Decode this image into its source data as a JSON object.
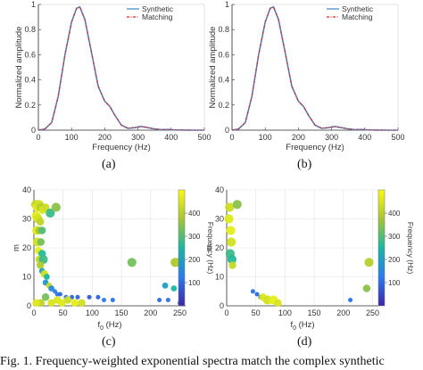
{
  "captions": {
    "a": "(a)",
    "b": "(b)",
    "c": "(c)",
    "d": "(d)"
  },
  "figure_caption": "Fig. 1.   Frequency-weighted exponential spectra match the complex synthetic",
  "chart_data": [
    {
      "type": "line",
      "xlabel": "Frequency (Hz)",
      "ylabel": "Normalized amplitude",
      "xlim": [
        0,
        500
      ],
      "ylim": [
        0,
        1
      ],
      "xticks": [
        0,
        100,
        200,
        300,
        400,
        500
      ],
      "yticks": [
        0,
        0.2,
        0.4,
        0.6,
        0.8,
        1
      ],
      "ytick_labels": [
        "0",
        "0.2",
        "0.4",
        "0.6",
        "0.8",
        "1"
      ],
      "grid": false,
      "legend": "top-right",
      "series": [
        {
          "name": "Synthetic",
          "color": "#4a90c9",
          "style": "solid",
          "x": [
            0,
            20,
            40,
            60,
            80,
            100,
            115,
            125,
            140,
            160,
            180,
            200,
            215,
            230,
            250,
            270,
            290,
            310,
            330,
            350,
            370,
            390,
            410,
            440,
            470,
            500
          ],
          "y": [
            0,
            0.01,
            0.06,
            0.27,
            0.6,
            0.86,
            0.97,
            0.98,
            0.88,
            0.62,
            0.35,
            0.23,
            0.19,
            0.12,
            0.04,
            0.015,
            0.02,
            0.03,
            0.02,
            0.01,
            0.004,
            0.006,
            0.002,
            0.001,
            0,
            0
          ]
        },
        {
          "name": "Matching",
          "color": "#d62728",
          "style": "dashdot",
          "x": [
            0,
            20,
            40,
            60,
            80,
            100,
            115,
            125,
            140,
            160,
            180,
            200,
            215,
            230,
            250,
            270,
            290,
            310,
            330,
            350,
            370,
            390,
            410,
            440,
            470,
            500
          ],
          "y": [
            0,
            0.01,
            0.06,
            0.27,
            0.6,
            0.86,
            0.97,
            0.98,
            0.88,
            0.62,
            0.35,
            0.23,
            0.19,
            0.12,
            0.04,
            0.015,
            0.02,
            0.03,
            0.02,
            0.01,
            0.004,
            0.006,
            0.002,
            0.001,
            0,
            0
          ]
        }
      ]
    },
    {
      "type": "line",
      "xlabel": "Frequency (Hz)",
      "ylabel": "Normalized amplitude",
      "xlim": [
        0,
        500
      ],
      "ylim": [
        0,
        1
      ],
      "xticks": [
        0,
        100,
        200,
        300,
        400,
        500
      ],
      "yticks": [
        0,
        0.2,
        0.4,
        0.6,
        0.8,
        1
      ],
      "ytick_labels": [
        "0",
        "0.2",
        "0.4",
        "0.6",
        "0.8",
        "1"
      ],
      "grid": false,
      "legend": "top-right",
      "series": [
        {
          "name": "Synthetic",
          "color": "#4a90c9",
          "style": "solid",
          "x": [
            0,
            20,
            40,
            60,
            80,
            100,
            115,
            125,
            140,
            160,
            180,
            200,
            215,
            230,
            250,
            270,
            290,
            310,
            330,
            350,
            370,
            390,
            410,
            440,
            470,
            500
          ],
          "y": [
            0,
            0.01,
            0.06,
            0.27,
            0.6,
            0.86,
            0.97,
            0.98,
            0.88,
            0.62,
            0.35,
            0.23,
            0.19,
            0.12,
            0.04,
            0.015,
            0.02,
            0.03,
            0.02,
            0.01,
            0.004,
            0.006,
            0.002,
            0.001,
            0,
            0
          ]
        },
        {
          "name": "Matching",
          "color": "#d62728",
          "style": "dashdot",
          "x": [
            0,
            20,
            40,
            60,
            80,
            100,
            115,
            125,
            140,
            160,
            180,
            200,
            215,
            230,
            250,
            270,
            290,
            310,
            330,
            350,
            370,
            390,
            410,
            440,
            470,
            500
          ],
          "y": [
            0,
            0.01,
            0.06,
            0.27,
            0.6,
            0.86,
            0.97,
            0.98,
            0.88,
            0.62,
            0.35,
            0.23,
            0.19,
            0.12,
            0.04,
            0.015,
            0.02,
            0.03,
            0.02,
            0.01,
            0.004,
            0.006,
            0.002,
            0.001,
            0,
            0
          ]
        }
      ]
    },
    {
      "type": "scatter",
      "xlabel": "f",
      "xlabel_sub": "0",
      "xlabel_unit": " (Hz)",
      "ylabel": "m",
      "xlim": [
        0,
        260
      ],
      "ylim": [
        0,
        40
      ],
      "xticks": [
        0,
        50,
        100,
        150,
        200,
        250
      ],
      "yticks": [
        0,
        10,
        20,
        30,
        40
      ],
      "grid": true,
      "colorbar": {
        "label": "Frequency (Hz)",
        "range": [
          0,
          500
        ],
        "ticks": [
          100,
          200,
          300,
          400
        ]
      },
      "points": [
        {
          "x": 3,
          "y": 35,
          "c": 420,
          "s": 6
        },
        {
          "x": 6,
          "y": 34,
          "c": 460,
          "s": 6
        },
        {
          "x": 9,
          "y": 35,
          "c": 440,
          "s": 6
        },
        {
          "x": 12,
          "y": 34,
          "c": 400,
          "s": 6
        },
        {
          "x": 15,
          "y": 33,
          "c": 450,
          "s": 5
        },
        {
          "x": 20,
          "y": 34,
          "c": 430,
          "s": 5
        },
        {
          "x": 28,
          "y": 32,
          "c": 280,
          "s": 6
        },
        {
          "x": 38,
          "y": 34,
          "c": 350,
          "s": 6
        },
        {
          "x": 4,
          "y": 31,
          "c": 470,
          "s": 6
        },
        {
          "x": 7,
          "y": 30,
          "c": 440,
          "s": 6
        },
        {
          "x": 11,
          "y": 29,
          "c": 410,
          "s": 5
        },
        {
          "x": 5,
          "y": 26,
          "c": 460,
          "s": 6
        },
        {
          "x": 9,
          "y": 26,
          "c": 380,
          "s": 5
        },
        {
          "x": 14,
          "y": 26,
          "c": 300,
          "s": 5
        },
        {
          "x": 6,
          "y": 22,
          "c": 440,
          "s": 6
        },
        {
          "x": 12,
          "y": 22,
          "c": 330,
          "s": 5
        },
        {
          "x": 8,
          "y": 19,
          "c": 470,
          "s": 5
        },
        {
          "x": 14,
          "y": 18,
          "c": 260,
          "s": 5
        },
        {
          "x": 9,
          "y": 16,
          "c": 420,
          "s": 5
        },
        {
          "x": 16,
          "y": 16,
          "c": 280,
          "s": 6
        },
        {
          "x": 11,
          "y": 14,
          "c": 390,
          "s": 5
        },
        {
          "x": 14,
          "y": 12,
          "c": 200,
          "s": 4
        },
        {
          "x": 18,
          "y": 11,
          "c": 440,
          "s": 5
        },
        {
          "x": 22,
          "y": 10,
          "c": 250,
          "s": 4
        },
        {
          "x": 20,
          "y": 8,
          "c": 180,
          "s": 4
        },
        {
          "x": 26,
          "y": 7,
          "c": 420,
          "s": 4
        },
        {
          "x": 30,
          "y": 6,
          "c": 160,
          "s": 4
        },
        {
          "x": 36,
          "y": 5,
          "c": 140,
          "s": 3
        },
        {
          "x": 40,
          "y": 4,
          "c": 120,
          "s": 3
        },
        {
          "x": 45,
          "y": 4,
          "c": 100,
          "s": 3
        },
        {
          "x": 55,
          "y": 3,
          "c": 110,
          "s": 3
        },
        {
          "x": 65,
          "y": 3,
          "c": 90,
          "s": 3
        },
        {
          "x": 75,
          "y": 3,
          "c": 90,
          "s": 3
        },
        {
          "x": 95,
          "y": 3,
          "c": 80,
          "s": 3
        },
        {
          "x": 110,
          "y": 3,
          "c": 90,
          "s": 3
        },
        {
          "x": 40,
          "y": 2,
          "c": 450,
          "s": 5
        },
        {
          "x": 48,
          "y": 1,
          "c": 460,
          "s": 5
        },
        {
          "x": 58,
          "y": 2,
          "c": 430,
          "s": 5
        },
        {
          "x": 70,
          "y": 1,
          "c": 470,
          "s": 5
        },
        {
          "x": 82,
          "y": 1,
          "c": 440,
          "s": 5
        },
        {
          "x": 30,
          "y": 1,
          "c": 450,
          "s": 5
        },
        {
          "x": 12,
          "y": 1,
          "c": 410,
          "s": 5
        },
        {
          "x": 4,
          "y": 1,
          "c": 460,
          "s": 5
        },
        {
          "x": 20,
          "y": 3,
          "c": 330,
          "s": 5
        },
        {
          "x": 120,
          "y": 2,
          "c": 120,
          "s": 3
        },
        {
          "x": 135,
          "y": 2,
          "c": 110,
          "s": 3
        },
        {
          "x": 168,
          "y": 15,
          "c": 330,
          "s": 6
        },
        {
          "x": 215,
          "y": 2,
          "c": 100,
          "s": 3
        },
        {
          "x": 225,
          "y": 7,
          "c": 200,
          "s": 4
        },
        {
          "x": 230,
          "y": 2,
          "c": 110,
          "s": 3
        },
        {
          "x": 242,
          "y": 15,
          "c": 380,
          "s": 6
        },
        {
          "x": 248,
          "y": 15,
          "c": 400,
          "s": 6
        },
        {
          "x": 240,
          "y": 6,
          "c": 250,
          "s": 4
        },
        {
          "x": 250,
          "y": 1,
          "c": 110,
          "s": 3
        }
      ]
    },
    {
      "type": "scatter",
      "xlabel": "f",
      "xlabel_sub": "0",
      "xlabel_unit": " (Hz)",
      "ylabel": "m",
      "xlim": [
        0,
        260
      ],
      "ylim": [
        0,
        40
      ],
      "xticks": [
        0,
        50,
        100,
        150,
        200,
        250
      ],
      "yticks": [
        0,
        10,
        20,
        30,
        40
      ],
      "grid": true,
      "colorbar": {
        "label": "Frequency (Hz)",
        "range": [
          0,
          500
        ],
        "ticks": [
          100,
          200,
          300,
          400
        ]
      },
      "points": [
        {
          "x": 5,
          "y": 34,
          "c": 430,
          "s": 6
        },
        {
          "x": 18,
          "y": 35,
          "c": 350,
          "s": 6
        },
        {
          "x": 4,
          "y": 30,
          "c": 460,
          "s": 6
        },
        {
          "x": 7,
          "y": 26,
          "c": 470,
          "s": 6
        },
        {
          "x": 8,
          "y": 22,
          "c": 440,
          "s": 6
        },
        {
          "x": 6,
          "y": 18,
          "c": 280,
          "s": 6
        },
        {
          "x": 9,
          "y": 16,
          "c": 260,
          "s": 6
        },
        {
          "x": 10,
          "y": 14,
          "c": 420,
          "s": 5
        },
        {
          "x": 45,
          "y": 5,
          "c": 110,
          "s": 3
        },
        {
          "x": 52,
          "y": 4,
          "c": 100,
          "s": 3
        },
        {
          "x": 58,
          "y": 3,
          "c": 90,
          "s": 3
        },
        {
          "x": 62,
          "y": 3,
          "c": 460,
          "s": 5
        },
        {
          "x": 70,
          "y": 2,
          "c": 440,
          "s": 6
        },
        {
          "x": 80,
          "y": 2,
          "c": 470,
          "s": 6
        },
        {
          "x": 88,
          "y": 1,
          "c": 450,
          "s": 5
        },
        {
          "x": 212,
          "y": 2,
          "c": 110,
          "s": 3
        },
        {
          "x": 240,
          "y": 6,
          "c": 350,
          "s": 5
        },
        {
          "x": 244,
          "y": 15,
          "c": 400,
          "s": 6
        }
      ]
    }
  ]
}
